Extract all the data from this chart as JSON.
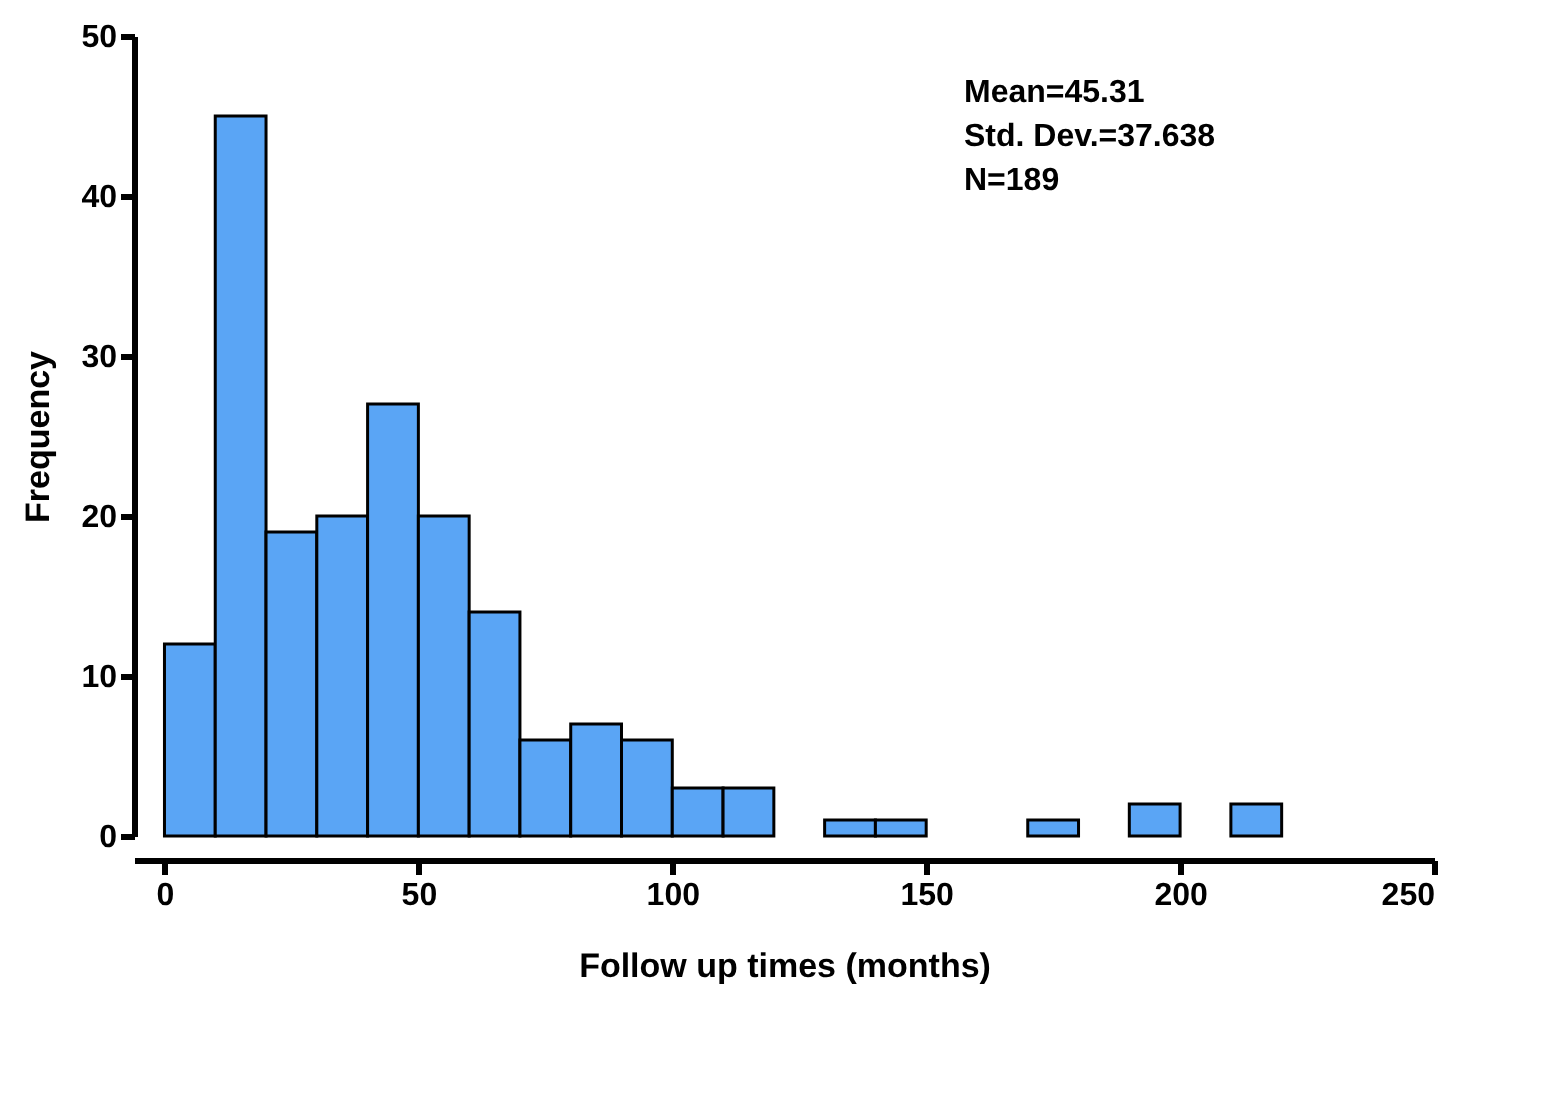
{
  "chart_data": {
    "type": "histogram",
    "xlabel": "Follow up times (months)",
    "ylabel": "Frequency",
    "bins": [
      0,
      10,
      20,
      30,
      40,
      50,
      60,
      70,
      80,
      90,
      100,
      110,
      120,
      130,
      140,
      150,
      160,
      170,
      180,
      190,
      200,
      210,
      220
    ],
    "values": [
      12,
      45,
      19,
      20,
      27,
      20,
      14,
      6,
      7,
      6,
      3,
      3,
      0,
      1,
      1,
      0,
      0,
      1,
      0,
      2,
      0,
      2
    ],
    "color": "#5aa5f5",
    "xlim": [
      -6,
      250
    ],
    "xticks": [
      0,
      50,
      100,
      150,
      200,
      250
    ],
    "ylim": [
      0,
      50
    ],
    "yticks": [
      0,
      10,
      20,
      30,
      40,
      50
    ],
    "grid": false,
    "annotations": [
      "Mean=45.31",
      "Std. Dev.=37.638",
      "N=189"
    ]
  }
}
